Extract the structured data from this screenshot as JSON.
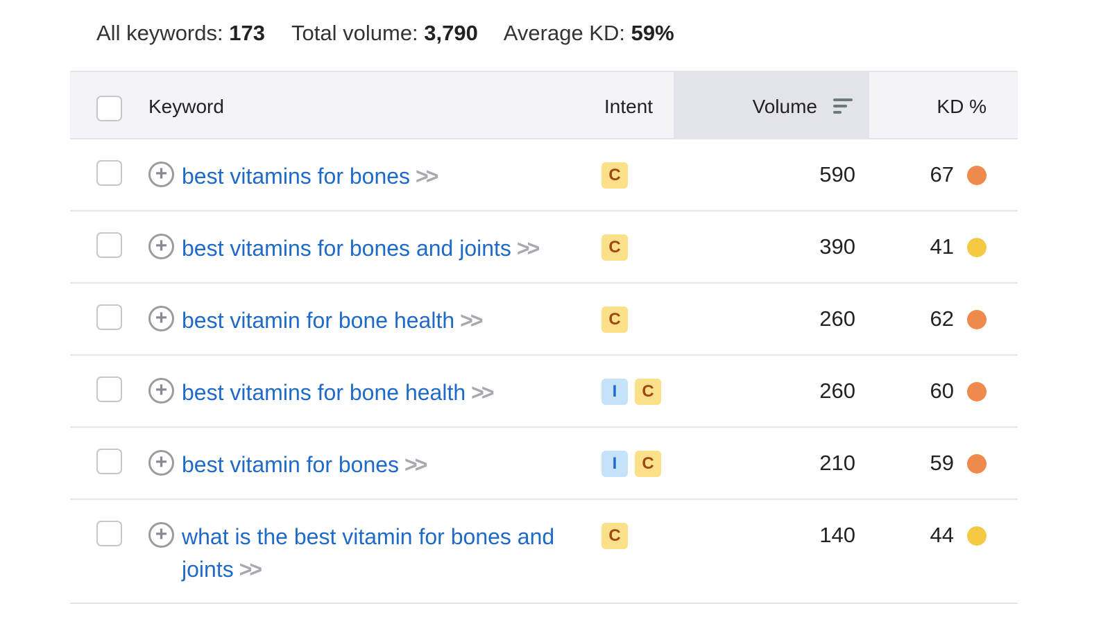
{
  "summary": {
    "all_label": "All keywords:",
    "all_value": "173",
    "volume_label": "Total volume:",
    "volume_value": "3,790",
    "kd_label": "Average KD:",
    "kd_value": "59%"
  },
  "columns": {
    "keyword": "Keyword",
    "intent": "Intent",
    "volume": "Volume",
    "kd": "KD %"
  },
  "colors": {
    "kd_hard": "#f0894e",
    "kd_medium": "#f6c944",
    "link": "#1f6ac9"
  },
  "rows": [
    {
      "keyword": "best vitamins for bones",
      "intents": [
        "C"
      ],
      "volume": "590",
      "kd": "67",
      "kd_level": "hard"
    },
    {
      "keyword": "best vitamins for bones and joints",
      "intents": [
        "C"
      ],
      "volume": "390",
      "kd": "41",
      "kd_level": "medium"
    },
    {
      "keyword": "best vitamin for bone health",
      "intents": [
        "C"
      ],
      "volume": "260",
      "kd": "62",
      "kd_level": "hard"
    },
    {
      "keyword": "best vitamins for bone health",
      "intents": [
        "I",
        "C"
      ],
      "volume": "260",
      "kd": "60",
      "kd_level": "hard"
    },
    {
      "keyword": "best vitamin for bones",
      "intents": [
        "I",
        "C"
      ],
      "volume": "210",
      "kd": "59",
      "kd_level": "hard"
    },
    {
      "keyword": "what is the best vitamin for bones and joints",
      "intents": [
        "C"
      ],
      "volume": "140",
      "kd": "44",
      "kd_level": "medium"
    }
  ]
}
